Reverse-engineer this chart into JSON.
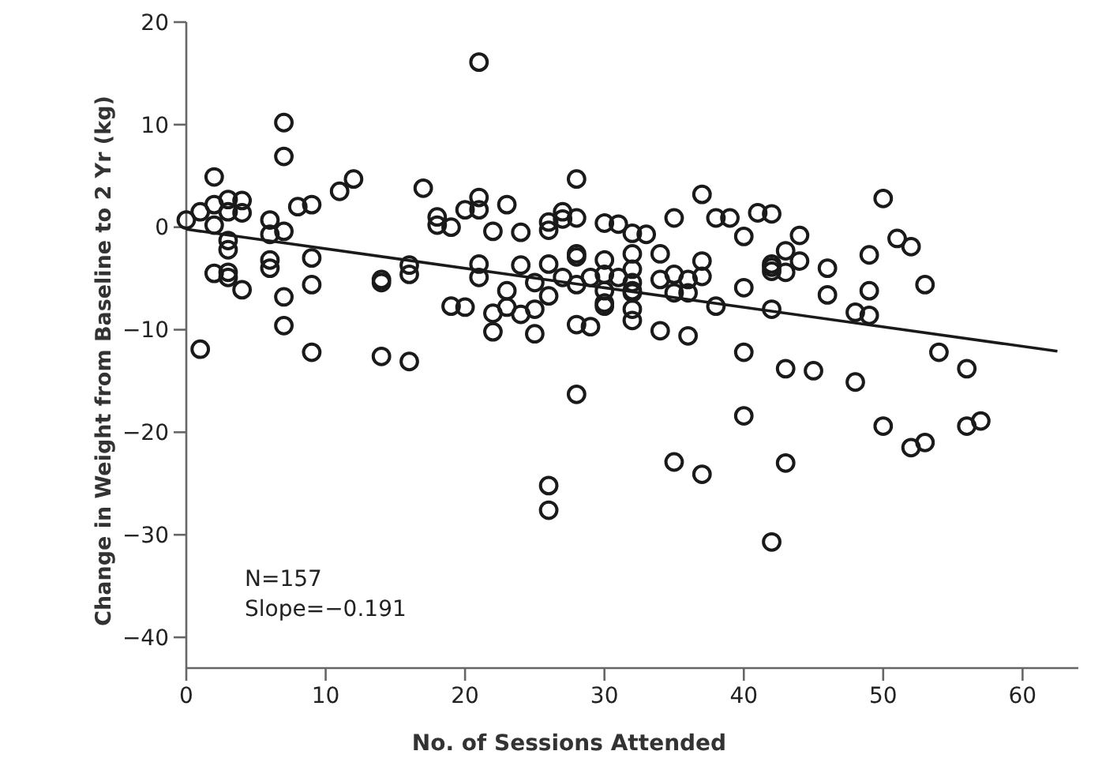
{
  "chart_data": {
    "type": "scatter",
    "xlabel": "No. of Sessions Attended",
    "ylabel": "Change in Weight from Baseline to 2 Yr (kg)",
    "xlim": [
      0,
      64
    ],
    "ylim": [
      -43,
      20
    ],
    "xticks": [
      0,
      10,
      20,
      30,
      40,
      50,
      60
    ],
    "yticks": [
      -40,
      -30,
      -20,
      -10,
      0,
      10,
      20
    ],
    "grid": false,
    "annotations": [
      "N=157",
      "Slope=−0.191"
    ],
    "series": [
      {
        "marker": "circle",
        "color": "#1a1a1a",
        "x": [
          0,
          1,
          2,
          2,
          2,
          3,
          3,
          3,
          3,
          4,
          4,
          2,
          3,
          3,
          4,
          6,
          6,
          7,
          7,
          7,
          6,
          6,
          7,
          7,
          8,
          9,
          9,
          9,
          11,
          12,
          1,
          9,
          14,
          14,
          14,
          16,
          16,
          16,
          17,
          18,
          18,
          19,
          20,
          20,
          19,
          21,
          21,
          21,
          23,
          22,
          24,
          28,
          26,
          26,
          27,
          27,
          28,
          30,
          31,
          32,
          33,
          35,
          37,
          38,
          39,
          40,
          41,
          42,
          21,
          21,
          24,
          26,
          25,
          26,
          23,
          23,
          22,
          24,
          25,
          22,
          25,
          27,
          28,
          28,
          28,
          29,
          29,
          30,
          30,
          30,
          30,
          30,
          31,
          32,
          32,
          32,
          32,
          32,
          32,
          32,
          34,
          34,
          34,
          35,
          35,
          36,
          36,
          36,
          37,
          37,
          38,
          40,
          40,
          42,
          42,
          42,
          28,
          50,
          44,
          43,
          42,
          43,
          44,
          46,
          46,
          49,
          49,
          51,
          52,
          53,
          48,
          49,
          54,
          56,
          43,
          45,
          48,
          50,
          52,
          53,
          56,
          57,
          43,
          28,
          26,
          26,
          35,
          37,
          40,
          42
        ],
        "values": [
          0.7,
          1.5,
          4.9,
          2.2,
          0.2,
          2.7,
          1.5,
          -1.3,
          -2.2,
          2.6,
          1.4,
          -4.5,
          -4.4,
          -4.9,
          -6.1,
          0.7,
          -0.7,
          -0.4,
          10.2,
          6.9,
          -3.2,
          -4,
          -6.8,
          -9.6,
          2,
          2.2,
          -3,
          -5.6,
          3.5,
          4.7,
          -11.9,
          -12.2,
          -5.1,
          -5.4,
          -12.6,
          -3.7,
          -4.6,
          -13.1,
          3.8,
          1,
          0.2,
          0,
          1.7,
          -7.8,
          -7.7,
          16.1,
          2.9,
          1.7,
          2.2,
          -0.4,
          -0.5,
          4.7,
          0.5,
          -0.3,
          1.5,
          0.8,
          0.9,
          0.4,
          0.3,
          -0.6,
          -0.7,
          0.9,
          3.2,
          0.9,
          0.9,
          -0.9,
          1.4,
          1.3,
          -3.6,
          -4.9,
          -3.7,
          -3.6,
          -5.4,
          -6.7,
          -6.2,
          -7.8,
          -8.4,
          -8.5,
          -8,
          -10.2,
          -10.4,
          -4.9,
          -2.6,
          -2.9,
          -5.6,
          -9.7,
          -4.9,
          -3.2,
          -4.6,
          -6.2,
          -7.4,
          -7.7,
          -4.9,
          -2.6,
          -4.1,
          -5.4,
          -6.2,
          -6.4,
          -8,
          -9.1,
          -2.6,
          -5.1,
          -10.1,
          -4.6,
          -6.4,
          -5.1,
          -6.4,
          -10.6,
          -3.3,
          -4.8,
          -7.7,
          -5.9,
          -12.2,
          -3.9,
          -4.3,
          -8,
          -9.5,
          2.8,
          -0.8,
          -2.3,
          -3.6,
          -4.4,
          -3.3,
          -4,
          -6.6,
          -2.7,
          -6.2,
          -1.1,
          -1.9,
          -5.6,
          -8.3,
          -8.6,
          -12.2,
          -13.8,
          -13.8,
          -14,
          -15.1,
          -19.4,
          -21.5,
          -21,
          -19.4,
          -18.9,
          -23,
          -16.3,
          -25.2,
          -27.6,
          -22.9,
          -24.1,
          -18.4,
          -30.7
        ]
      },
      {
        "type": "line",
        "marker": "none",
        "color": "#1a1a1a",
        "x": [
          0,
          62.5
        ],
        "values": [
          -0.2,
          -12.1
        ]
      }
    ]
  }
}
